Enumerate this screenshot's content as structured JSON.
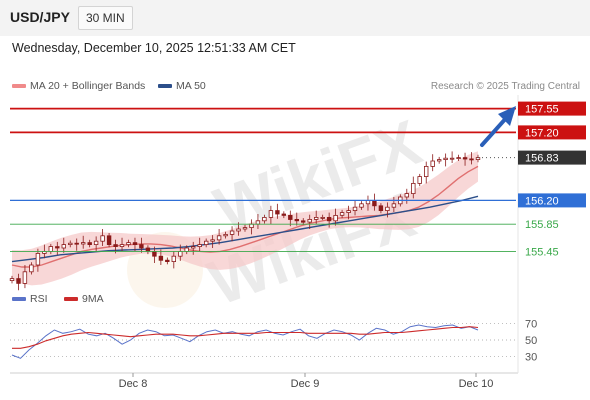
{
  "header": {
    "symbol": "USD/JPY",
    "timeframe": "30 MIN"
  },
  "timestamp": "Wednesday, December 10, 2025 12:51:33 AM CET",
  "legend": {
    "ma20": "MA 20 + Bollinger Bands",
    "ma50": "MA 50",
    "credit": "Research © 2025 Trading Central"
  },
  "rsi_legend": {
    "rsi": "RSI",
    "ma9": "9MA"
  },
  "watermark": "WikiFX",
  "colors": {
    "resistance": "#cc1111",
    "support": "#2f6fd6",
    "support_minor": "#3aa84a",
    "candle_body": "#8b1a1a",
    "ma20": "#e07070",
    "ma50": "#2c4f8a",
    "bollinger": "#f6c9c9",
    "rsi": "#5a73c9",
    "rsi_ma": "#cc2b2b",
    "current": "#333333",
    "arrow": "#2a5fb8"
  },
  "chart_data": {
    "type": "candlestick",
    "x_labels": [
      "Dec 8",
      "Dec 9",
      "Dec 10"
    ],
    "y_range": [
      155.0,
      157.75
    ],
    "levels": [
      {
        "value": 157.55,
        "label": "157.55",
        "kind": "resistance",
        "style": "solid"
      },
      {
        "value": 157.2,
        "label": "157.20",
        "kind": "resistance",
        "style": "solid"
      },
      {
        "value": 156.83,
        "label": "156.83",
        "kind": "current",
        "style": "dotted"
      },
      {
        "value": 156.2,
        "label": "156.20",
        "kind": "support",
        "style": "solid"
      },
      {
        "value": 155.85,
        "label": "155.85",
        "kind": "support_minor",
        "style": "solid"
      },
      {
        "value": 155.45,
        "label": "155.45",
        "kind": "support_minor",
        "style": "solid"
      }
    ],
    "price_series": [
      155.05,
      154.98,
      155.15,
      155.25,
      155.42,
      155.45,
      155.52,
      155.5,
      155.55,
      155.57,
      155.56,
      155.58,
      155.55,
      155.6,
      155.68,
      155.55,
      155.52,
      155.55,
      155.58,
      155.55,
      155.5,
      155.45,
      155.38,
      155.32,
      155.3,
      155.38,
      155.45,
      155.5,
      155.52,
      155.55,
      155.6,
      155.62,
      155.68,
      155.7,
      155.75,
      155.78,
      155.8,
      155.85,
      155.9,
      155.95,
      156.05,
      156.0,
      155.98,
      155.92,
      155.9,
      155.88,
      155.92,
      155.95,
      155.95,
      155.9,
      155.98,
      156.02,
      156.05,
      156.1,
      156.15,
      156.2,
      156.12,
      156.05,
      156.1,
      156.15,
      156.25,
      156.3,
      156.45,
      156.55,
      156.7,
      156.78,
      156.8,
      156.82,
      156.82,
      156.83,
      156.81,
      156.8,
      156.83
    ],
    "ma20_series": [
      155.25,
      155.22,
      155.22,
      155.25,
      155.3,
      155.35,
      155.4,
      155.45,
      155.48,
      155.5,
      155.52,
      155.54,
      155.55,
      155.56,
      155.56,
      155.55,
      155.53,
      155.5,
      155.47,
      155.45,
      155.44,
      155.45,
      155.48,
      155.52,
      155.57,
      155.62,
      155.67,
      155.72,
      155.77,
      155.82,
      155.86,
      155.89,
      155.92,
      155.94,
      155.95,
      155.96,
      155.97,
      155.98,
      156.0,
      156.02,
      156.05,
      156.1,
      156.18,
      156.28,
      156.4,
      156.52,
      156.62,
      156.7
    ],
    "ma50_series": [
      155.3,
      155.33,
      155.36,
      155.4,
      155.42,
      155.44,
      155.46,
      155.47,
      155.48,
      155.49,
      155.5,
      155.52,
      155.55,
      155.58,
      155.62,
      155.66,
      155.7,
      155.74,
      155.78,
      155.82,
      155.86,
      155.9,
      155.94,
      155.98,
      156.02,
      156.06,
      156.1,
      156.15,
      156.2,
      156.26
    ],
    "rsi": {
      "y_range": [
        20,
        80
      ],
      "ticks": [
        70,
        50,
        30
      ],
      "rsi_series": [
        32,
        28,
        38,
        46,
        55,
        62,
        58,
        60,
        63,
        57,
        55,
        58,
        52,
        45,
        50,
        58,
        62,
        60,
        55,
        56,
        52,
        48,
        55,
        60,
        62,
        58,
        60,
        57,
        55,
        60,
        62,
        58,
        56,
        60,
        63,
        55,
        52,
        58,
        62,
        60,
        56,
        50,
        58,
        64,
        62,
        57,
        60,
        66,
        68,
        66,
        65,
        67,
        68,
        64,
        66,
        62
      ],
      "ma9_series": [
        40,
        40,
        42,
        45,
        49,
        52,
        55,
        57,
        58,
        59,
        58,
        57,
        56,
        55,
        54,
        55,
        56,
        57,
        57,
        57,
        56,
        55,
        55,
        56,
        57,
        58,
        58,
        58,
        58,
        58,
        59,
        59,
        59,
        59,
        59,
        58,
        58,
        58,
        58,
        58,
        58,
        57,
        57,
        58,
        59,
        59,
        59,
        60,
        61,
        62,
        63,
        64,
        65,
        65,
        66,
        65
      ]
    }
  }
}
